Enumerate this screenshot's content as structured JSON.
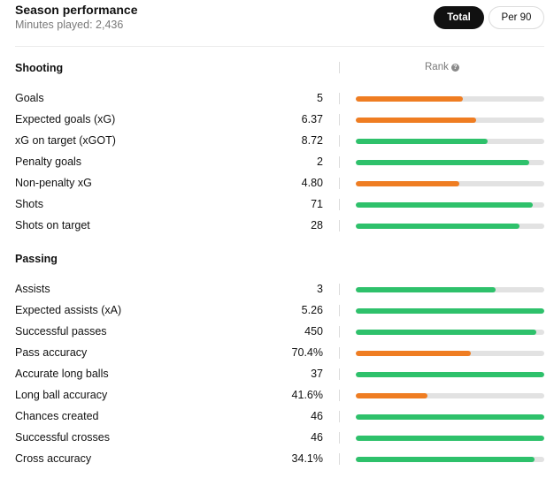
{
  "header": {
    "title": "Season performance",
    "subtitle": "Minutes played: 2,436",
    "toggle_total": "Total",
    "toggle_per90": "Per 90"
  },
  "rank_label": "Rank",
  "colors": {
    "high": "#2ec16b",
    "low": "#ef7d22",
    "track": "#e2e2e2"
  },
  "sections": [
    {
      "title": "Shooting",
      "stats": [
        {
          "label": "Goals",
          "value": "5",
          "rank_fraction": 0.57,
          "color": "#ef7d22"
        },
        {
          "label": "Expected goals (xG)",
          "value": "6.37",
          "rank_fraction": 0.64,
          "color": "#ef7d22"
        },
        {
          "label": "xG on target (xGOT)",
          "value": "8.72",
          "rank_fraction": 0.7,
          "color": "#2ec16b"
        },
        {
          "label": "Penalty goals",
          "value": "2",
          "rank_fraction": 0.92,
          "color": "#2ec16b"
        },
        {
          "label": "Non-penalty xG",
          "value": "4.80",
          "rank_fraction": 0.55,
          "color": "#ef7d22"
        },
        {
          "label": "Shots",
          "value": "71",
          "rank_fraction": 0.94,
          "color": "#2ec16b"
        },
        {
          "label": "Shots on target",
          "value": "28",
          "rank_fraction": 0.87,
          "color": "#2ec16b"
        }
      ]
    },
    {
      "title": "Passing",
      "stats": [
        {
          "label": "Assists",
          "value": "3",
          "rank_fraction": 0.74,
          "color": "#2ec16b"
        },
        {
          "label": "Expected assists (xA)",
          "value": "5.26",
          "rank_fraction": 1.0,
          "color": "#2ec16b"
        },
        {
          "label": "Successful passes",
          "value": "450",
          "rank_fraction": 0.96,
          "color": "#2ec16b"
        },
        {
          "label": "Pass accuracy",
          "value": "70.4%",
          "rank_fraction": 0.61,
          "color": "#ef7d22"
        },
        {
          "label": "Accurate long balls",
          "value": "37",
          "rank_fraction": 1.0,
          "color": "#2ec16b"
        },
        {
          "label": "Long ball accuracy",
          "value": "41.6%",
          "rank_fraction": 0.38,
          "color": "#ef7d22"
        },
        {
          "label": "Chances created",
          "value": "46",
          "rank_fraction": 1.0,
          "color": "#2ec16b"
        },
        {
          "label": "Successful crosses",
          "value": "46",
          "rank_fraction": 1.0,
          "color": "#2ec16b"
        },
        {
          "label": "Cross accuracy",
          "value": "34.1%",
          "rank_fraction": 0.95,
          "color": "#2ec16b"
        }
      ]
    }
  ]
}
